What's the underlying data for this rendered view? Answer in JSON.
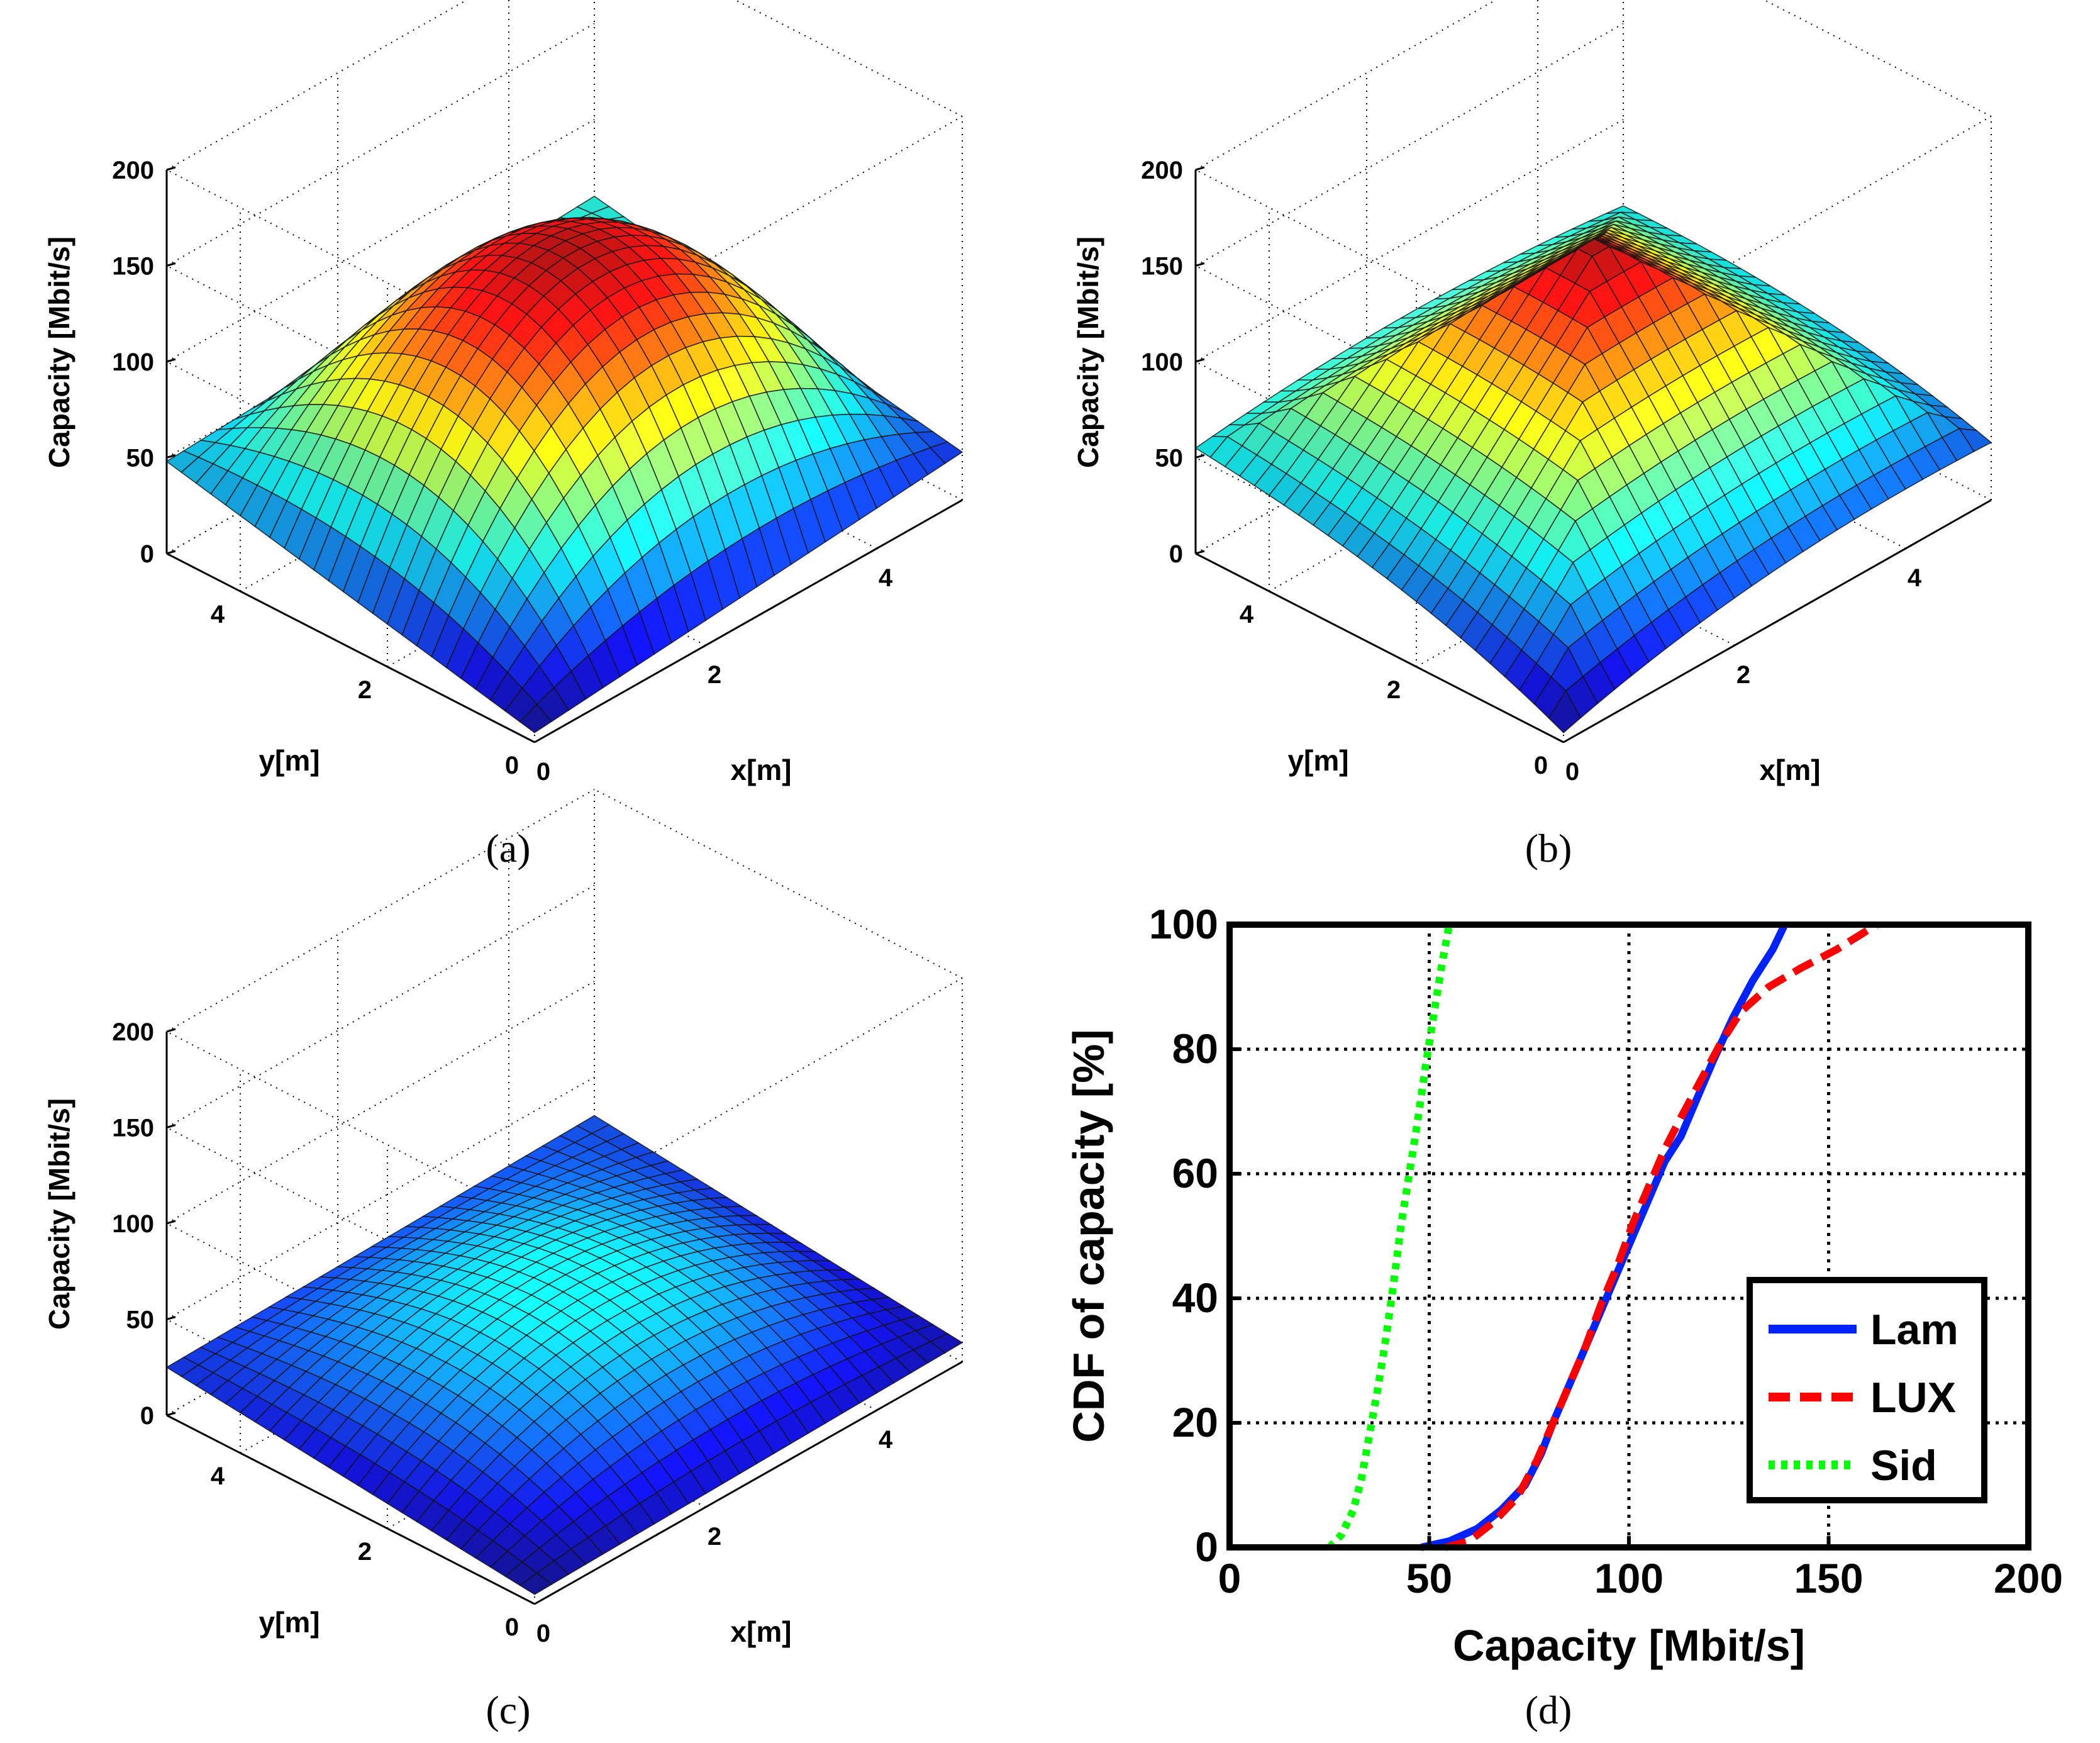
{
  "chart_data": [
    {
      "type": "surface3d",
      "panel_label": "(a)",
      "zlabel": "Capacity [Mbit/s]",
      "xlabel": "x[m]",
      "ylabel": "y[m]",
      "zlim": [
        0,
        200
      ],
      "zticks": [
        "0",
        "50",
        "100",
        "150",
        "200"
      ],
      "xticks": [
        "0",
        "2",
        "4"
      ],
      "yticks": [
        "0",
        "2",
        "4"
      ],
      "grid": true,
      "colormap": "jet",
      "grid_size": 25,
      "surface": {
        "shape": "dome",
        "peak": 145,
        "corners": {
          "x0y0": 5,
          "x5y0": 25,
          "x0y5": 48,
          "x5y5": 60
        }
      }
    },
    {
      "type": "surface3d",
      "panel_label": "(b)",
      "zlabel": "Capacity [Mbit/s]",
      "xlabel": "x[m]",
      "ylabel": "y[m]",
      "zlim": [
        0,
        200
      ],
      "zticks": [
        "0",
        "50",
        "100",
        "150",
        "200"
      ],
      "xticks": [
        "0",
        "2",
        "4"
      ],
      "yticks": [
        "0",
        "2",
        "4"
      ],
      "grid": true,
      "colormap": "jet",
      "grid_size": 25,
      "surface": {
        "shape": "pyramid",
        "peak": 150,
        "corners": {
          "x0y0": 5,
          "x5y0": 30,
          "x0y5": 55,
          "x5y5": 55
        }
      }
    },
    {
      "type": "surface3d",
      "panel_label": "(c)",
      "zlabel": "Capacity [Mbit/s]",
      "xlabel": "x[m]",
      "ylabel": "y[m]",
      "zlim": [
        0,
        200
      ],
      "zticks": [
        "0",
        "50",
        "100",
        "150",
        "200"
      ],
      "xticks": [
        "0",
        "2",
        "4"
      ],
      "yticks": [
        "0",
        "2",
        "4"
      ],
      "grid": true,
      "colormap": "jet",
      "grid_size": 25,
      "surface": {
        "shape": "dome",
        "peak": 55,
        "corners": {
          "x0y0": 5,
          "x5y0": 10,
          "x0y5": 25,
          "x5y5": 30
        }
      }
    },
    {
      "type": "line",
      "panel_label": "(d)",
      "xlabel": "Capacity [Mbit/s]",
      "ylabel": "CDF of capacity [%]",
      "xlim": [
        0,
        200
      ],
      "ylim": [
        0,
        100
      ],
      "xticks": [
        "0",
        "50",
        "100",
        "150",
        "200"
      ],
      "yticks": [
        "0",
        "20",
        "40",
        "60",
        "80",
        "100"
      ],
      "grid": true,
      "legend_position": "bottom-right",
      "series": [
        {
          "name": "Lam",
          "color": "#0022ff",
          "style": "solid",
          "x": [
            48,
            55,
            62,
            68,
            74,
            78,
            81,
            85,
            89,
            93,
            97,
            101,
            105,
            109,
            113,
            117,
            121,
            126,
            131,
            136,
            139
          ],
          "y": [
            0,
            1,
            3,
            6,
            10,
            15,
            20,
            26,
            32,
            38,
            44,
            50,
            56,
            62,
            66,
            72,
            78,
            85,
            91,
            96,
            100
          ]
        },
        {
          "name": "LUX",
          "color": "#ff0000",
          "style": "dashed",
          "x": [
            54,
            60,
            66,
            72,
            77,
            81,
            85,
            89,
            93,
            97,
            101,
            105,
            109,
            113,
            118,
            123,
            128,
            135,
            143,
            152,
            162
          ],
          "y": [
            0,
            1,
            4,
            8,
            14,
            20,
            26,
            32,
            39,
            45,
            52,
            58,
            64,
            69,
            75,
            81,
            86,
            90,
            93,
            96,
            100
          ]
        },
        {
          "name": "Sid",
          "color": "#00ff00",
          "style": "dotted",
          "x": [
            25,
            28,
            31,
            33,
            35,
            37,
            39,
            41,
            43,
            45,
            47,
            49,
            51,
            53,
            55
          ],
          "y": [
            0,
            2,
            6,
            11,
            18,
            25,
            33,
            42,
            52,
            60,
            68,
            77,
            85,
            93,
            100
          ]
        }
      ]
    }
  ]
}
